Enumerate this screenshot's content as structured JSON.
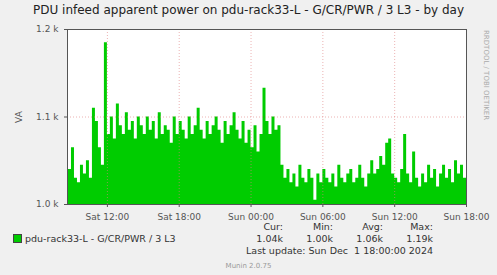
{
  "chart_data": {
    "type": "area",
    "title": "PDU infeed apparent power on pdu-rack33-L - G/CR/PWR / 3 L3 - by day",
    "y_label": "VA",
    "x": [
      8.75,
      9,
      9.25,
      9.5,
      9.75,
      10,
      10.25,
      10.5,
      10.75,
      11,
      11.25,
      11.5,
      11.75,
      12,
      12.25,
      12.5,
      12.75,
      13,
      13.25,
      13.5,
      13.75,
      14,
      14.25,
      14.5,
      14.75,
      15,
      15.25,
      15.5,
      15.75,
      16,
      16.25,
      16.5,
      16.75,
      17,
      17.25,
      17.5,
      17.75,
      18,
      18.25,
      18.5,
      18.75,
      19,
      19.25,
      19.5,
      19.75,
      20,
      20.25,
      20.5,
      20.75,
      21,
      21.25,
      21.5,
      21.75,
      22,
      22.25,
      22.5,
      22.75,
      23,
      23.25,
      23.5,
      23.75,
      24,
      24.25,
      24.5,
      24.75,
      25,
      25.25,
      25.5,
      25.75,
      26,
      26.25,
      26.5,
      26.75,
      27,
      27.25,
      27.5,
      27.75,
      28,
      28.25,
      28.5,
      28.75,
      29,
      29.25,
      29.5,
      29.75,
      30,
      30.25,
      30.5,
      30.75,
      31,
      31.25,
      31.5,
      31.75,
      32,
      32.25,
      32.5,
      32.75,
      33,
      33.25,
      33.5,
      33.75,
      34,
      34.25,
      34.5,
      34.75,
      35,
      35.25,
      35.5,
      35.75,
      36,
      36.25,
      36.5,
      36.75,
      37,
      37.25,
      37.5,
      37.75,
      38,
      38.25,
      38.5,
      38.75,
      39,
      39.25,
      39.5,
      39.75,
      40,
      40.25,
      40.5,
      40.75,
      41,
      41.25,
      41.5,
      41.75,
      42
    ],
    "series": [
      {
        "name": "pdu-rack33-L - G/CR/PWR / 3 L3",
        "color": "#00cc00",
        "values": [
          1040,
          1065,
          1030,
          1025,
          1045,
          1035,
          1050,
          1030,
          1110,
          1095,
          1065,
          1045,
          1185,
          1080,
          1100,
          1075,
          1115,
          1090,
          1080,
          1105,
          1085,
          1095,
          1075,
          1100,
          1090,
          1080,
          1100,
          1085,
          1095,
          1075,
          1105,
          1080,
          1090,
          1085,
          1070,
          1100,
          1080,
          1095,
          1085,
          1075,
          1100,
          1080,
          1090,
          1110,
          1085,
          1075,
          1095,
          1080,
          1090,
          1100,
          1085,
          1070,
          1095,
          1080,
          1090,
          1105,
          1085,
          1075,
          1095,
          1070,
          1085,
          1065,
          1090,
          1060,
          1080,
          1133,
          1095,
          1080,
          1100,
          1085,
          1090,
          1045,
          1030,
          1040,
          1025,
          1035,
          1020,
          1045,
          1030,
          1025,
          1040,
          1030,
          1005,
          1035,
          1025,
          1040,
          1030,
          1025,
          1035,
          1020,
          1045,
          1030,
          1025,
          1035,
          1040,
          1025,
          1030,
          1045,
          1030,
          1020,
          1035,
          1050,
          1035,
          1040,
          1055,
          1045,
          1070,
          1075,
          1035,
          1030,
          1025,
          1040,
          1080,
          1035,
          1025,
          1060,
          1030,
          1020,
          1035,
          1025,
          1045,
          1030,
          1040,
          1020,
          1035,
          1045,
          1030,
          1040,
          1025,
          1050,
          1035,
          1045,
          1030,
          1040
        ]
      }
    ],
    "xlim": [
      8.667,
      42
    ],
    "xticks": [
      {
        "value": 12,
        "label": "Sat 12:00"
      },
      {
        "value": 18,
        "label": "Sat 18:00"
      },
      {
        "value": 24,
        "label": "Sun 00:00"
      },
      {
        "value": 30,
        "label": "Sun 06:00"
      },
      {
        "value": 36,
        "label": "Sun 12:00"
      },
      {
        "value": 42,
        "label": "Sun 18:00"
      }
    ],
    "ylim": [
      1000,
      1200
    ],
    "yticks": [
      {
        "value": 1000,
        "label": "1.0 k"
      },
      {
        "value": 1100,
        "label": "1.1 k"
      },
      {
        "value": 1200,
        "label": "1.2 k"
      }
    ],
    "grid": true,
    "legend": "bottom",
    "legend_stats": [
      {
        "label": "Cur:",
        "value": "1.04k"
      },
      {
        "label": "Min:",
        "value": "1.00k"
      },
      {
        "label": "Avg:",
        "value": "1.06k"
      },
      {
        "label": "Max:",
        "value": "1.19k"
      }
    ],
    "last_update": "Last update: Sun Dec  1 18:00:00 2024",
    "footer": "Munin 2.0.75",
    "watermark": "RRDTOOL / TOBI OETIKER"
  }
}
